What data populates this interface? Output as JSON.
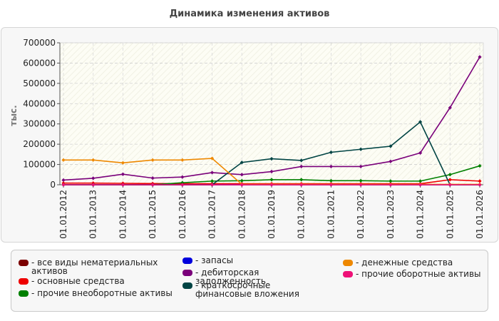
{
  "chart_data": {
    "type": "line",
    "title": "Динамика изменения активов",
    "ylabel": "тыс.",
    "xlabel": "",
    "ylim": [
      0,
      700000
    ],
    "y_ticks": [
      "0",
      "100000",
      "200000",
      "300000",
      "400000",
      "500000",
      "600000",
      "700000"
    ],
    "categories": [
      "01.01.2012",
      "01.01.2013",
      "01.01.2014",
      "01.01.2015",
      "01.01.2016",
      "01.01.2017",
      "01.01.2018",
      "01.01.2019",
      "01.01.2020",
      "01.01.2021",
      "01.01.2022",
      "01.01.2023",
      "01.01.2024",
      "01.01.2025",
      "01.01.2026"
    ],
    "grid": true,
    "legend_position": "bottom",
    "series": [
      {
        "name": "- все виды нематериальных активов",
        "color": "#7b0000",
        "values": [
          0,
          0,
          0,
          0,
          0,
          0,
          0,
          0,
          0,
          0,
          0,
          0,
          0,
          0,
          0
        ]
      },
      {
        "name": "- основные средства",
        "color": "#ee0000",
        "values": [
          8000,
          8000,
          7000,
          6000,
          5000,
          5000,
          5000,
          5000,
          5000,
          5000,
          5000,
          5000,
          5000,
          25000,
          18000
        ]
      },
      {
        "name": "- прочие внеоборотные активы",
        "color": "#008000",
        "values": [
          0,
          0,
          0,
          0,
          10000,
          18000,
          20000,
          25000,
          25000,
          20000,
          20000,
          18000,
          18000,
          50000,
          93000
        ]
      },
      {
        "name": "- запасы",
        "color": "#0000dd",
        "values": [
          0,
          0,
          0,
          0,
          0,
          0,
          0,
          0,
          0,
          0,
          0,
          0,
          0,
          0,
          0
        ]
      },
      {
        "name": "- дебиторская задолженность",
        "color": "#7a007a",
        "values": [
          23000,
          32000,
          52000,
          33000,
          38000,
          60000,
          50000,
          65000,
          90000,
          90000,
          90000,
          115000,
          157000,
          380000,
          630000
        ]
      },
      {
        "name": "- краткосрочные финансовые вложения",
        "color": "#004444",
        "values": [
          0,
          0,
          0,
          0,
          0,
          0,
          110000,
          128000,
          120000,
          160000,
          175000,
          190000,
          310000,
          0,
          0
        ]
      },
      {
        "name": "- денежные средства",
        "color": "#ee8800",
        "values": [
          122000,
          122000,
          108000,
          122000,
          122000,
          130000,
          2000,
          2000,
          2000,
          2000,
          2000,
          2000,
          2000,
          2000,
          2000
        ]
      },
      {
        "name": "- прочие оборотные активы",
        "color": "#ee1177",
        "values": [
          0,
          0,
          0,
          0,
          0,
          0,
          0,
          0,
          0,
          0,
          0,
          0,
          0,
          0,
          0
        ]
      }
    ]
  }
}
